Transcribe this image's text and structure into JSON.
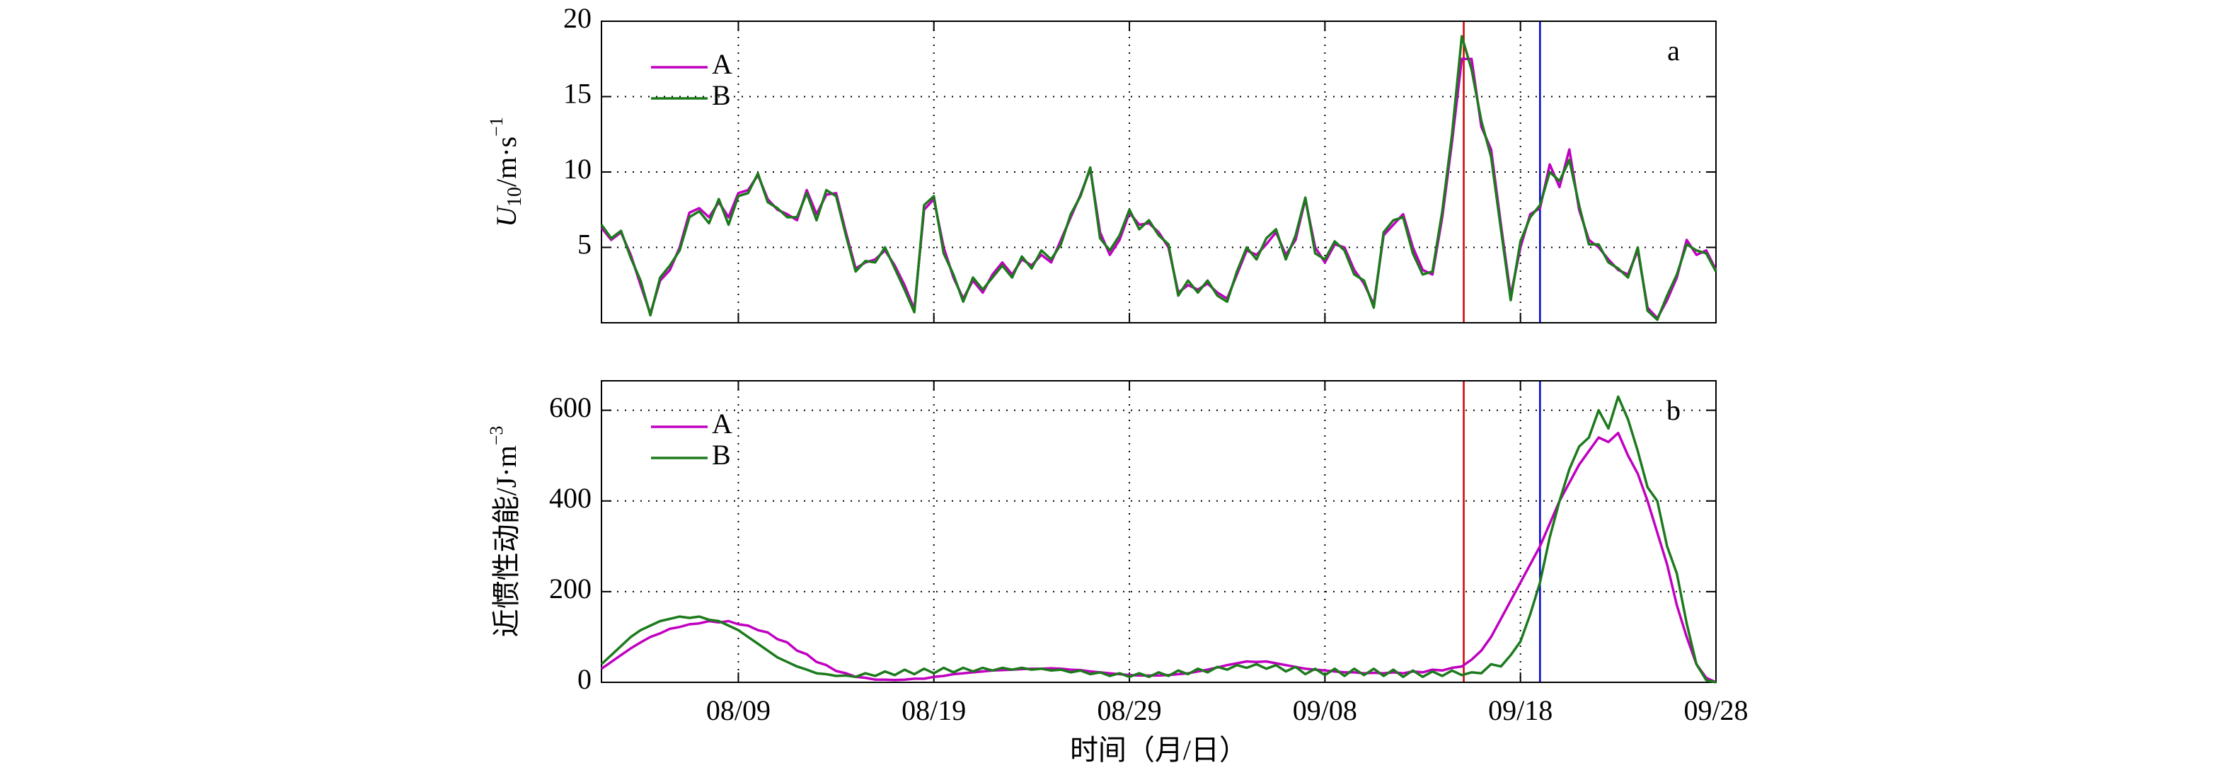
{
  "chart_data": [
    {
      "type": "line",
      "panel_label": "a",
      "ylabel": {
        "main": "U",
        "sub": "10",
        "unit": "/m·s",
        "sup": "−1"
      },
      "xlim": [
        0,
        57
      ],
      "xticks": [
        7,
        17,
        27,
        37,
        47,
        57
      ],
      "ylim": [
        0,
        20
      ],
      "yticks": [
        5,
        10,
        15,
        20
      ],
      "grid": true,
      "legend": "upper left",
      "vlines": [
        {
          "x": 44.1,
          "color": "#d40000"
        },
        {
          "x": 48,
          "color": "#0000d8"
        }
      ],
      "x": [
        0,
        0.5,
        1,
        1.5,
        2,
        2.5,
        3,
        3.5,
        4,
        4.5,
        5,
        5.5,
        6,
        6.5,
        7,
        7.5,
        8,
        8.5,
        9,
        9.5,
        10,
        10.5,
        11,
        11.5,
        12,
        12.5,
        13,
        13.5,
        14,
        14.5,
        15,
        15.5,
        16,
        16.5,
        17,
        17.5,
        18,
        18.5,
        19,
        19.5,
        20,
        20.5,
        21,
        21.5,
        22,
        22.5,
        23,
        23.5,
        24,
        24.5,
        25,
        25.5,
        26,
        26.5,
        27,
        27.5,
        28,
        28.5,
        29,
        29.5,
        30,
        30.5,
        31,
        31.5,
        32,
        32.5,
        33,
        33.5,
        34,
        34.5,
        35,
        35.5,
        36,
        36.5,
        37,
        37.5,
        38,
        38.5,
        39,
        39.5,
        40,
        40.5,
        41,
        41.5,
        42,
        42.5,
        43,
        43.5,
        44,
        44.5,
        45,
        45.5,
        46,
        46.5,
        47,
        47.5,
        48,
        48.5,
        49,
        49.5,
        50,
        50.5,
        51,
        51.5,
        52,
        52.5,
        53,
        53.5,
        54,
        54.5,
        55,
        55.5,
        56,
        56.5,
        57
      ],
      "series": [
        {
          "name": "A",
          "color": "#c000c0",
          "values": [
            6.3,
            5.5,
            6.0,
            4.5,
            2.5,
            0.6,
            2.8,
            3.5,
            5.0,
            7.3,
            7.6,
            7.0,
            8.0,
            7.0,
            8.6,
            8.8,
            9.8,
            8.2,
            7.5,
            7.2,
            6.8,
            8.8,
            7.2,
            8.5,
            8.6,
            6.0,
            3.6,
            4.0,
            4.2,
            4.8,
            3.8,
            2.5,
            0.9,
            7.5,
            8.2,
            5.0,
            3.0,
            1.6,
            2.8,
            2.0,
            3.2,
            4.0,
            3.2,
            4.2,
            3.8,
            4.5,
            4.0,
            5.5,
            7.0,
            8.5,
            10.2,
            6.0,
            4.5,
            5.5,
            7.3,
            6.5,
            6.6,
            6.0,
            5.0,
            2.0,
            2.5,
            2.2,
            2.6,
            2.0,
            1.6,
            3.2,
            4.8,
            4.5,
            5.2,
            6.0,
            4.5,
            5.5,
            8.2,
            5.0,
            4.0,
            5.2,
            5.0,
            3.5,
            2.6,
            1.2,
            5.8,
            6.5,
            7.2,
            5.0,
            3.5,
            3.2,
            7.0,
            12.0,
            17.5,
            17.5,
            13.0,
            11.5,
            6.5,
            1.8,
            5.0,
            7.2,
            7.6,
            10.5,
            9.0,
            11.5,
            7.5,
            5.5,
            5.0,
            4.2,
            3.5,
            3.2,
            4.8,
            1.0,
            0.3,
            1.5,
            3.0,
            5.5,
            4.5,
            4.8,
            3.5
          ]
        },
        {
          "name": "B",
          "color": "#1c7a1c",
          "values": [
            6.5,
            5.6,
            6.1,
            4.3,
            2.8,
            0.5,
            3.0,
            3.8,
            4.8,
            7.0,
            7.4,
            6.6,
            8.2,
            6.5,
            8.4,
            8.6,
            9.9,
            8.0,
            7.6,
            7.0,
            7.0,
            8.6,
            6.8,
            8.8,
            8.4,
            5.8,
            3.4,
            4.1,
            4.0,
            5.0,
            3.6,
            2.2,
            0.7,
            7.8,
            8.4,
            4.6,
            3.2,
            1.4,
            3.0,
            2.2,
            3.0,
            3.8,
            3.0,
            4.4,
            3.6,
            4.8,
            4.2,
            5.2,
            7.2,
            8.4,
            10.3,
            5.6,
            4.8,
            5.8,
            7.5,
            6.2,
            6.8,
            5.8,
            5.2,
            1.8,
            2.8,
            2.0,
            2.8,
            1.8,
            1.4,
            3.4,
            5.0,
            4.2,
            5.6,
            6.2,
            4.2,
            5.8,
            8.3,
            4.6,
            4.2,
            5.4,
            4.8,
            3.2,
            2.8,
            1.0,
            6.0,
            6.8,
            7.0,
            4.6,
            3.2,
            3.4,
            7.4,
            12.5,
            19.0,
            16.8,
            13.4,
            11.0,
            6.2,
            1.5,
            5.4,
            7.0,
            7.8,
            10.0,
            9.4,
            10.8,
            7.8,
            5.2,
            5.2,
            4.0,
            3.6,
            3.0,
            5.0,
            0.8,
            0.2,
            1.8,
            3.2,
            5.2,
            4.8,
            4.6,
            3.4
          ]
        }
      ]
    },
    {
      "type": "line",
      "panel_label": "b",
      "xlabel": "时间（月/日）",
      "ylabel": {
        "main": "近惯性动能",
        "unit": "/J·m",
        "sup": "−3"
      },
      "xlim": [
        0,
        57
      ],
      "xticks": [
        {
          "value": 7,
          "label": "08/09"
        },
        {
          "value": 17,
          "label": "08/19"
        },
        {
          "value": 27,
          "label": "08/29"
        },
        {
          "value": 37,
          "label": "09/08"
        },
        {
          "value": 47,
          "label": "09/18"
        },
        {
          "value": 57,
          "label": "09/28"
        }
      ],
      "ylim": [
        0,
        665
      ],
      "yticks": [
        0,
        200,
        400,
        600
      ],
      "grid": true,
      "legend": "upper left",
      "vlines": [
        {
          "x": 44.1,
          "color": "#d40000"
        },
        {
          "x": 48,
          "color": "#0000d8"
        }
      ],
      "x": [
        0,
        0.5,
        1,
        1.5,
        2,
        2.5,
        3,
        3.5,
        4,
        4.5,
        5,
        5.5,
        6,
        6.5,
        7,
        7.5,
        8,
        8.5,
        9,
        9.5,
        10,
        10.5,
        11,
        11.5,
        12,
        12.5,
        13,
        13.5,
        14,
        14.5,
        15,
        15.5,
        16,
        16.5,
        17,
        17.5,
        18,
        18.5,
        19,
        19.5,
        20,
        20.5,
        21,
        21.5,
        22,
        22.5,
        23,
        23.5,
        24,
        24.5,
        25,
        25.5,
        26,
        26.5,
        27,
        27.5,
        28,
        28.5,
        29,
        29.5,
        30,
        30.5,
        31,
        31.5,
        32,
        32.5,
        33,
        33.5,
        34,
        34.5,
        35,
        35.5,
        36,
        36.5,
        37,
        37.5,
        38,
        38.5,
        39,
        39.5,
        40,
        40.5,
        41,
        41.5,
        42,
        42.5,
        43,
        43.5,
        44,
        44.5,
        45,
        45.5,
        46,
        46.5,
        47,
        47.5,
        48,
        48.5,
        49,
        49.5,
        50,
        50.5,
        51,
        51.5,
        52,
        52.5,
        53,
        53.5,
        54,
        54.5,
        55,
        55.5,
        56,
        56.5,
        57
      ],
      "series": [
        {
          "name": "A",
          "color": "#c000c0",
          "values": [
            30,
            45,
            60,
            75,
            88,
            100,
            108,
            118,
            122,
            128,
            130,
            135,
            132,
            135,
            128,
            125,
            115,
            110,
            95,
            88,
            70,
            62,
            45,
            38,
            25,
            20,
            12,
            10,
            6,
            6,
            5,
            6,
            8,
            8,
            12,
            14,
            18,
            20,
            22,
            24,
            26,
            27,
            28,
            29,
            30,
            30,
            31,
            30,
            28,
            27,
            24,
            22,
            20,
            18,
            16,
            15,
            15,
            15,
            16,
            18,
            20,
            24,
            28,
            33,
            38,
            42,
            46,
            45,
            46,
            42,
            38,
            34,
            30,
            28,
            26,
            24,
            22,
            22,
            20,
            21,
            20,
            22,
            20,
            24,
            22,
            28,
            26,
            32,
            35,
            50,
            70,
            100,
            140,
            180,
            220,
            260,
            300,
            350,
            400,
            440,
            480,
            510,
            540,
            530,
            550,
            500,
            460,
            400,
            330,
            260,
            170,
            100,
            40,
            10,
            0
          ]
        },
        {
          "name": "B",
          "color": "#1c7a1c",
          "values": [
            40,
            60,
            80,
            100,
            115,
            125,
            135,
            140,
            145,
            142,
            145,
            138,
            135,
            125,
            115,
            100,
            85,
            70,
            55,
            45,
            35,
            28,
            20,
            18,
            14,
            15,
            12,
            20,
            14,
            24,
            16,
            28,
            18,
            30,
            20,
            32,
            22,
            32,
            24,
            32,
            26,
            32,
            28,
            32,
            28,
            30,
            26,
            28,
            22,
            26,
            18,
            22,
            14,
            20,
            12,
            20,
            12,
            22,
            14,
            26,
            18,
            30,
            22,
            34,
            28,
            38,
            32,
            40,
            30,
            38,
            24,
            34,
            18,
            30,
            16,
            30,
            14,
            30,
            16,
            30,
            14,
            28,
            12,
            26,
            12,
            24,
            14,
            26,
            16,
            22,
            20,
            40,
            35,
            60,
            90,
            150,
            220,
            320,
            400,
            470,
            520,
            540,
            600,
            560,
            630,
            580,
            510,
            430,
            400,
            300,
            240,
            130,
            40,
            5,
            0
          ]
        }
      ]
    }
  ]
}
